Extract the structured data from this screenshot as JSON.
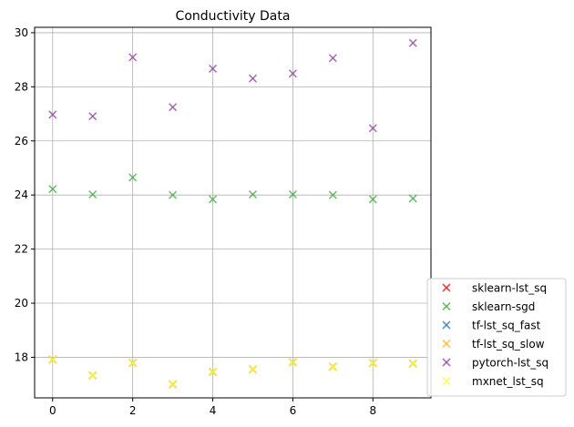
{
  "chart_data": {
    "type": "scatter",
    "title": "Conductivity Data",
    "xlabel": "",
    "ylabel": "",
    "xlim": [
      -0.45,
      9.45
    ],
    "ylim": [
      16.5,
      30.2
    ],
    "xticks": [
      0,
      2,
      4,
      6,
      8
    ],
    "yticks": [
      18,
      20,
      22,
      24,
      26,
      28,
      30
    ],
    "grid": true,
    "legend_position": "lower-right-outside",
    "marker": "x",
    "x": [
      0,
      1,
      2,
      3,
      4,
      5,
      6,
      7,
      8,
      9
    ],
    "series": [
      {
        "name": "sklearn-lst_sq",
        "color": "#e41a1c",
        "values": [
          17.92,
          17.33,
          17.79,
          17.0,
          17.46,
          17.55,
          17.82,
          17.65,
          17.79,
          17.77
        ]
      },
      {
        "name": "sklearn-sgd",
        "color": "#4daf4a",
        "values": [
          24.22,
          24.02,
          24.65,
          24.0,
          23.84,
          24.02,
          24.02,
          24.0,
          23.84,
          23.87
        ]
      },
      {
        "name": "tf-lst_sq_fast",
        "color": "#377eb8",
        "values": [
          17.92,
          17.33,
          17.79,
          17.0,
          17.46,
          17.55,
          17.82,
          17.65,
          17.79,
          17.77
        ]
      },
      {
        "name": "tf-lst_sq_slow",
        "color": "#ffb733",
        "values": [
          17.92,
          17.33,
          17.79,
          17.0,
          17.46,
          17.55,
          17.82,
          17.65,
          17.79,
          17.77
        ]
      },
      {
        "name": "pytorch-lst_sq",
        "color": "#984ea3",
        "values": [
          26.97,
          26.91,
          29.09,
          27.25,
          28.67,
          28.31,
          28.49,
          29.06,
          26.47,
          29.62
        ]
      },
      {
        "name": "mxnet_lst_sq",
        "color": "#ffff33",
        "values": [
          17.92,
          17.33,
          17.79,
          17.0,
          17.46,
          17.55,
          17.82,
          17.65,
          17.79,
          17.77
        ]
      }
    ]
  }
}
